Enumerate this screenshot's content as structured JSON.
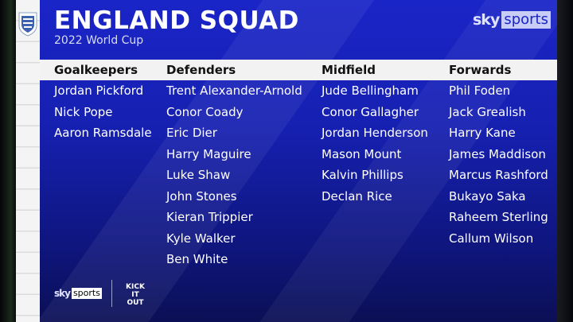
{
  "title": "ENGLAND SQUAD",
  "subtitle": "2022 World Cup",
  "branding": {
    "sky": "sky",
    "sports": "sports",
    "kick_it_out": "KICK IT OUT"
  },
  "colors": {
    "panel": "#1620b0",
    "header_bar": "#f2f2f2"
  },
  "columns": [
    {
      "heading": "Goalkeepers",
      "players": [
        "Jordan Pickford",
        "Nick Pope",
        "Aaron Ramsdale"
      ]
    },
    {
      "heading": "Defenders",
      "players": [
        "Trent Alexander-Arnold",
        "Conor Coady",
        "Eric Dier",
        "Harry Maguire",
        "Luke Shaw",
        "John Stones",
        "Kieran Trippier",
        "Kyle Walker",
        "Ben White"
      ]
    },
    {
      "heading": "Midfield",
      "players": [
        "Jude Bellingham",
        "Conor Gallagher",
        "Jordan Henderson",
        "Mason Mount",
        "Kalvin Phillips",
        "Declan Rice"
      ]
    },
    {
      "heading": "Forwards",
      "players": [
        "Phil Foden",
        "Jack Grealish",
        "Harry Kane",
        "James Maddison",
        "Marcus Rashford",
        "Bukayo Saka",
        "Raheem Sterling",
        "Callum Wilson"
      ]
    }
  ]
}
